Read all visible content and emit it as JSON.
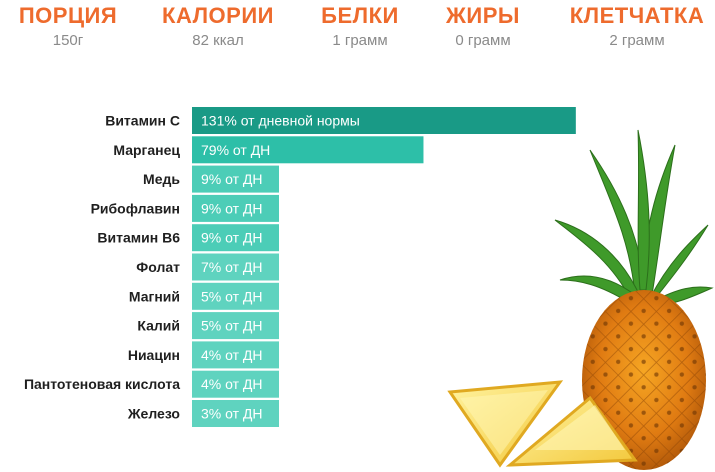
{
  "header": {
    "stats": [
      {
        "title": "ПОРЦИЯ",
        "value": "150г"
      },
      {
        "title": "КАЛОРИИ",
        "value": "82 ккал"
      },
      {
        "title": "БЕЛКИ",
        "value": "1 грамм"
      },
      {
        "title": "ЖИРЫ",
        "value": "0 грамм"
      },
      {
        "title": "КЛЕТЧАТКА",
        "value": "2 грамм"
      }
    ]
  },
  "colors": {
    "accent": "#ee6b2d",
    "bar_dark": "#199a86",
    "bar_mid": "#2dbfa8",
    "bar_light": "#4ccdb7",
    "bar_lightest": "#5fd3bf"
  },
  "chart_data": {
    "type": "bar",
    "orientation": "horizontal",
    "categories": [
      "Витамин С",
      "Марганец",
      "Медь",
      "Рибофлавин",
      "Витамин В6",
      "Фолат",
      "Магний",
      "Калий",
      "Ниацин",
      "Пантотеновая кислота",
      "Железо"
    ],
    "values": [
      131,
      79,
      9,
      9,
      9,
      7,
      5,
      5,
      4,
      4,
      3
    ],
    "value_labels": [
      "131% от дневной нормы",
      "79% от ДН",
      "9% от ДН",
      "9% от ДН",
      "9% от ДН",
      "7% от ДН",
      "5% от ДН",
      "5% от ДН",
      "4% от ДН",
      "4% от ДН",
      "3% от ДН"
    ],
    "unit": "% от ДН",
    "grid": false
  }
}
